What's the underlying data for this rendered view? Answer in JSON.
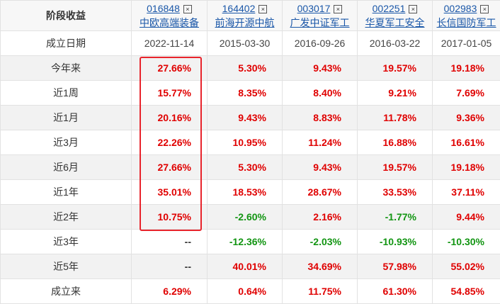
{
  "header": {
    "title": "阶段收益",
    "funds": [
      {
        "code": "016848",
        "name": "中欧高端装备"
      },
      {
        "code": "164402",
        "name": "前海开源中航"
      },
      {
        "code": "003017",
        "name": "广发中证军工"
      },
      {
        "code": "002251",
        "name": "华夏军工安全"
      },
      {
        "code": "002983",
        "name": "长信国防军工"
      }
    ]
  },
  "table": {
    "rows": [
      [
        "成立日期",
        "2022-11-14",
        "2015-03-30",
        "2016-09-26",
        "2016-03-22",
        "2017-01-05"
      ],
      [
        "今年来",
        "27.66%",
        "5.30%",
        "9.43%",
        "19.57%",
        "19.18%"
      ],
      [
        "近1周",
        "15.77%",
        "8.35%",
        "8.40%",
        "9.21%",
        "7.69%"
      ],
      [
        "近1月",
        "20.16%",
        "9.43%",
        "8.83%",
        "11.78%",
        "9.36%"
      ],
      [
        "近3月",
        "22.26%",
        "10.95%",
        "11.24%",
        "16.88%",
        "16.61%"
      ],
      [
        "近6月",
        "27.66%",
        "5.30%",
        "9.43%",
        "19.57%",
        "19.18%"
      ],
      [
        "近1年",
        "35.01%",
        "18.53%",
        "28.67%",
        "33.53%",
        "37.11%"
      ],
      [
        "近2年",
        "10.75%",
        "-2.60%",
        "2.16%",
        "-1.77%",
        "9.44%"
      ],
      [
        "近3年",
        "--",
        "-12.36%",
        "-2.03%",
        "-10.93%",
        "-10.30%"
      ],
      [
        "近5年",
        "--",
        "40.01%",
        "34.69%",
        "57.98%",
        "55.02%"
      ],
      [
        "成立来",
        "6.29%",
        "0.64%",
        "11.75%",
        "61.30%",
        "54.85%"
      ]
    ]
  }
}
